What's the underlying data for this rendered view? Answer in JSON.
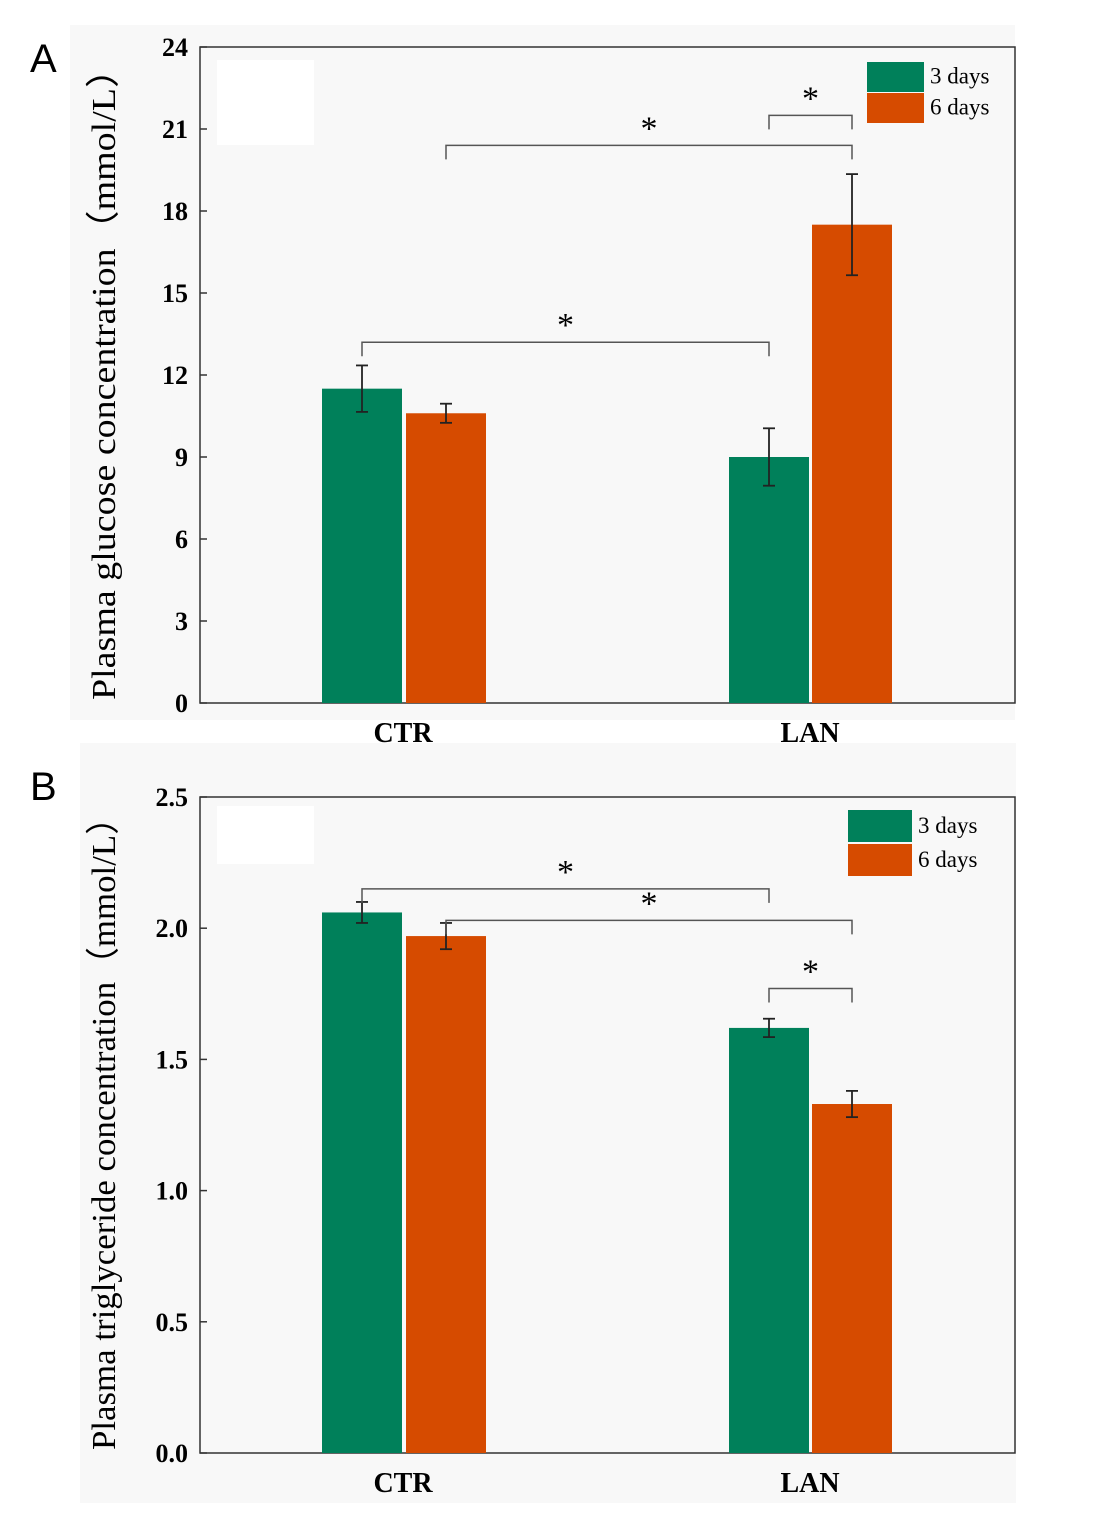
{
  "figure": {
    "colors": {
      "three_days": "#00805a",
      "six_days": "#d64b00",
      "panel_bg": "#f8f8f8"
    }
  },
  "chart_data": [
    {
      "panel_label": "A",
      "type": "bar",
      "ylabel": "Plasma glucose concentration（mmol/L）",
      "categories": [
        "CTR",
        "LAN"
      ],
      "ylim": [
        0,
        24
      ],
      "yticks": [
        "0",
        "3",
        "6",
        "9",
        "12",
        "15",
        "18",
        "21",
        "24"
      ],
      "legend_position": "top-right",
      "series": [
        {
          "name": "3 days",
          "values": [
            11.5,
            9.0
          ],
          "errors": [
            0.85,
            1.05
          ]
        },
        {
          "name": "6 days",
          "values": [
            10.6,
            17.5
          ],
          "errors": [
            0.35,
            1.85
          ]
        }
      ],
      "significance": [
        {
          "label": "*",
          "from": {
            "category": 0,
            "series": 0
          },
          "to": {
            "category": 1,
            "series": 0
          },
          "y": 13.2
        },
        {
          "label": "*",
          "from": {
            "category": 0,
            "series": 1
          },
          "to": {
            "category": 1,
            "series": 1
          },
          "y": 20.4
        },
        {
          "label": "*",
          "from": {
            "category": 1,
            "series": 0
          },
          "to": {
            "category": 1,
            "series": 1
          },
          "y": 21.5
        }
      ]
    },
    {
      "panel_label": "B",
      "type": "bar",
      "ylabel": "Plasma triglyceride concentration（mmol/L）",
      "categories": [
        "CTR",
        "LAN"
      ],
      "ylim": [
        0,
        2.5
      ],
      "yticks": [
        "0.0",
        "0.5",
        "1.0",
        "1.5",
        "2.0",
        "2.5"
      ],
      "legend_position": "top-right",
      "series": [
        {
          "name": "3 days",
          "values": [
            2.06,
            1.62
          ],
          "errors": [
            0.04,
            0.035
          ]
        },
        {
          "name": "6 days",
          "values": [
            1.97,
            1.33
          ],
          "errors": [
            0.05,
            0.05
          ]
        }
      ],
      "significance": [
        {
          "label": "*",
          "from": {
            "category": 0,
            "series": 0
          },
          "to": {
            "category": 1,
            "series": 0
          },
          "y": 2.15
        },
        {
          "label": "*",
          "from": {
            "category": 0,
            "series": 1
          },
          "to": {
            "category": 1,
            "series": 1
          },
          "y": 2.03
        },
        {
          "label": "*",
          "from": {
            "category": 1,
            "series": 0
          },
          "to": {
            "category": 1,
            "series": 1
          },
          "y": 1.77
        }
      ]
    }
  ]
}
